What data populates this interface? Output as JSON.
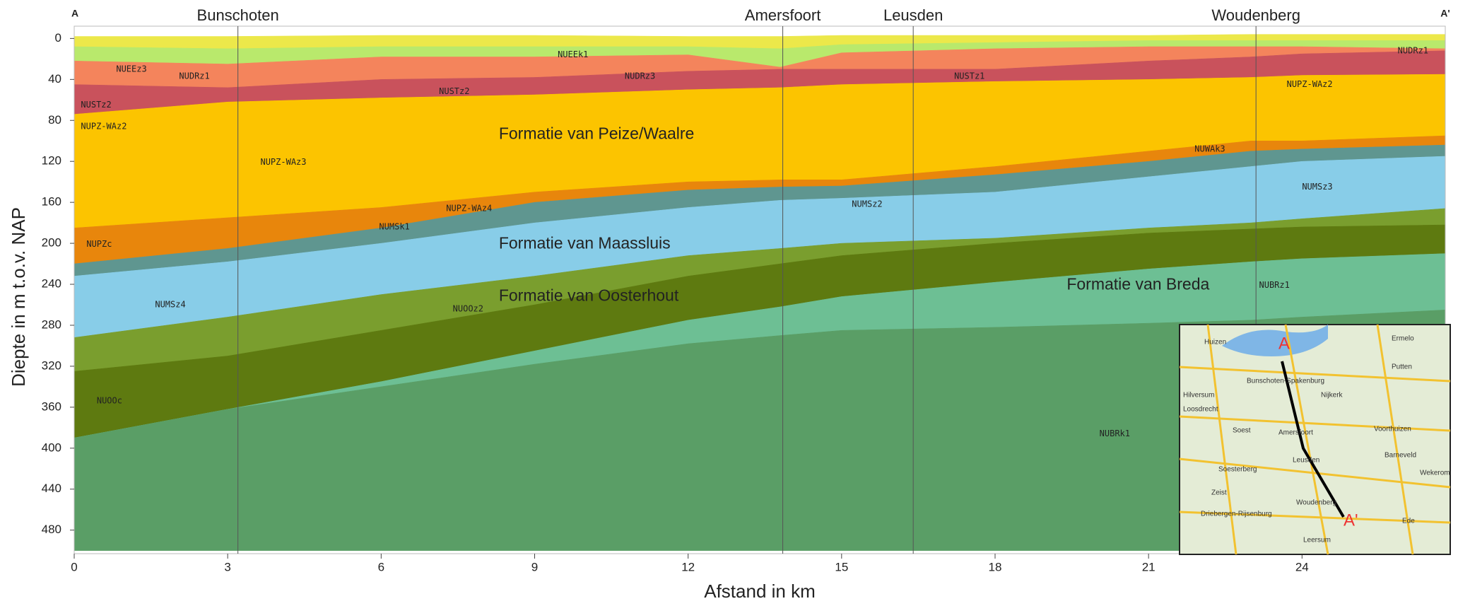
{
  "chart_data": {
    "type": "cross-section",
    "xlabel": "Afstand in km",
    "ylabel": "Diepte in m t.o.v. NAP",
    "xlim": [
      0,
      26.8
    ],
    "ylim": [
      -12,
      503
    ],
    "y_inverted": true,
    "xticks": [
      0,
      3,
      6,
      9,
      12,
      15,
      18,
      21,
      24
    ],
    "yticks": [
      0,
      40,
      80,
      120,
      160,
      200,
      240,
      280,
      320,
      360,
      400,
      440,
      480
    ],
    "section_start": "A",
    "section_end": "A'",
    "towns": [
      {
        "name": "Bunschoten",
        "x": 3.2
      },
      {
        "name": "Amersfoort",
        "x": 13.85
      },
      {
        "name": "Leusden",
        "x": 16.4
      },
      {
        "name": "Woudenberg",
        "x": 23.1
      }
    ],
    "x": [
      0,
      3,
      6,
      9,
      12,
      13.8,
      15,
      18,
      21,
      23,
      24,
      26.8
    ],
    "layers": [
      {
        "color": "#ece84a",
        "top": [
          -2,
          -2,
          -3,
          -3,
          -2,
          -2,
          -3,
          -3,
          -3,
          -4,
          -4,
          -4
        ],
        "bottom": [
          8,
          10,
          8,
          8,
          8,
          10,
          6,
          4,
          2,
          2,
          2,
          2
        ]
      },
      {
        "color": "#b9e96c",
        "top": [
          8,
          10,
          8,
          8,
          8,
          10,
          6,
          4,
          2,
          2,
          2,
          2
        ],
        "bottom": [
          22,
          25,
          18,
          18,
          16,
          28,
          14,
          10,
          8,
          8,
          8,
          10
        ]
      },
      {
        "color": "#f4845c",
        "top": [
          22,
          25,
          18,
          18,
          16,
          28,
          14,
          10,
          8,
          8,
          8,
          10
        ],
        "bottom": [
          45,
          48,
          40,
          38,
          32,
          30,
          30,
          30,
          22,
          18,
          15,
          12
        ]
      },
      {
        "color": "#c9525c",
        "top": [
          45,
          48,
          40,
          38,
          32,
          30,
          30,
          30,
          22,
          18,
          15,
          12
        ],
        "bottom": [
          74,
          62,
          58,
          55,
          50,
          48,
          45,
          42,
          40,
          38,
          36,
          35
        ]
      },
      {
        "color": "#fcc400",
        "top": [
          74,
          62,
          58,
          55,
          50,
          48,
          45,
          42,
          40,
          38,
          36,
          35
        ],
        "bottom": [
          185,
          175,
          165,
          150,
          140,
          138,
          138,
          125,
          110,
          100,
          100,
          95
        ]
      },
      {
        "color": "#e8860c",
        "top": [
          185,
          175,
          165,
          150,
          140,
          138,
          138,
          125,
          110,
          100,
          100,
          95
        ],
        "bottom": [
          220,
          205,
          185,
          160,
          148,
          145,
          144,
          133,
          120,
          110,
          108,
          104
        ]
      },
      {
        "color": "#5f9690",
        "top": [
          220,
          205,
          185,
          160,
          148,
          145,
          144,
          133,
          120,
          110,
          108,
          104
        ],
        "bottom": [
          232,
          218,
          200,
          180,
          165,
          158,
          156,
          150,
          135,
          125,
          120,
          115
        ]
      },
      {
        "color": "#88cde8",
        "top": [
          232,
          218,
          200,
          180,
          165,
          158,
          156,
          150,
          135,
          125,
          120,
          115
        ],
        "bottom": [
          292,
          272,
          250,
          232,
          212,
          205,
          200,
          195,
          185,
          180,
          176,
          166
        ]
      },
      {
        "color": "#7a9e2e",
        "top": [
          292,
          272,
          250,
          232,
          212,
          205,
          200,
          195,
          185,
          180,
          176,
          166
        ],
        "bottom": [
          325,
          310,
          285,
          260,
          232,
          220,
          212,
          200,
          190,
          186,
          184,
          182
        ]
      },
      {
        "color": "#5e7a10",
        "top": [
          325,
          310,
          285,
          260,
          232,
          220,
          212,
          200,
          190,
          186,
          184,
          182
        ],
        "bottom": [
          390,
          362,
          335,
          305,
          275,
          262,
          252,
          238,
          225,
          218,
          215,
          210
        ]
      },
      {
        "color": "#6dbf94",
        "top": [
          390,
          362,
          335,
          305,
          275,
          262,
          252,
          238,
          225,
          218,
          215,
          210
        ],
        "bottom": [
          390,
          362,
          340,
          318,
          298,
          290,
          285,
          282,
          278,
          275,
          272,
          265
        ]
      },
      {
        "color": "#5a9e66",
        "top": [
          390,
          362,
          340,
          318,
          298,
          290,
          285,
          282,
          278,
          275,
          272,
          265
        ],
        "bottom": [
          500,
          500,
          500,
          500,
          500,
          500,
          500,
          500,
          500,
          500,
          500,
          500
        ]
      }
    ],
    "formations": [
      {
        "text": "Formatie van Peize/Waalre",
        "x": 8.3,
        "y": 94
      },
      {
        "text": "Formatie van Maassluis",
        "x": 8.3,
        "y": 201
      },
      {
        "text": "Formatie van Oosterhout",
        "x": 8.3,
        "y": 252
      },
      {
        "text": "Formatie van Breda",
        "x": 19.4,
        "y": 241
      }
    ],
    "codes": [
      {
        "text": "NUEEz3",
        "x": 0.82,
        "y": 30
      },
      {
        "text": "NUDRz1",
        "x": 2.05,
        "y": 37
      },
      {
        "text": "NUEEk1",
        "x": 9.45,
        "y": 16
      },
      {
        "text": "NUDRz3",
        "x": 10.76,
        "y": 37
      },
      {
        "text": "NUSTz2",
        "x": 7.13,
        "y": 52
      },
      {
        "text": "NUSTz2",
        "x": 0.13,
        "y": 65
      },
      {
        "text": "NUSTz1",
        "x": 17.2,
        "y": 37
      },
      {
        "text": "NUDRz1",
        "x": 25.87,
        "y": 12
      },
      {
        "text": "NUPZ-WAz2",
        "x": 0.13,
        "y": 86
      },
      {
        "text": "NUPZ-WAz2",
        "x": 23.7,
        "y": 45
      },
      {
        "text": "NUPZ-WAz3",
        "x": 3.64,
        "y": 121
      },
      {
        "text": "NUWAk3",
        "x": 21.9,
        "y": 108
      },
      {
        "text": "NUPZ-WAz4",
        "x": 7.27,
        "y": 166
      },
      {
        "text": "NUMSk1",
        "x": 5.96,
        "y": 184
      },
      {
        "text": "NUMSz2",
        "x": 15.2,
        "y": 162
      },
      {
        "text": "NUMSz3",
        "x": 24.0,
        "y": 145
      },
      {
        "text": "NUPZc",
        "x": 0.24,
        "y": 201
      },
      {
        "text": "NUMSz4",
        "x": 1.58,
        "y": 260
      },
      {
        "text": "NUOOz2",
        "x": 7.4,
        "y": 264
      },
      {
        "text": "NUBRz1",
        "x": 23.16,
        "y": 241
      },
      {
        "text": "NUOOc",
        "x": 0.44,
        "y": 354
      },
      {
        "text": "NUBRk1",
        "x": 20.04,
        "y": 386
      }
    ]
  },
  "inset_map": {
    "start": "A",
    "end": "A'",
    "places": [
      "Huizen",
      "Ermelo",
      "Putten",
      "Bunschoten-Spakenburg",
      "Nijkerk",
      "Hilversum",
      "Loosdrecht",
      "Soest",
      "Amersfoort",
      "Voorthuizen",
      "Barneveld",
      "Leusden",
      "Soesterberg",
      "Zeist",
      "Woudenberg",
      "Wekerom",
      "Driebergen-Rijsenburg",
      "Leersum",
      "Ede"
    ]
  }
}
